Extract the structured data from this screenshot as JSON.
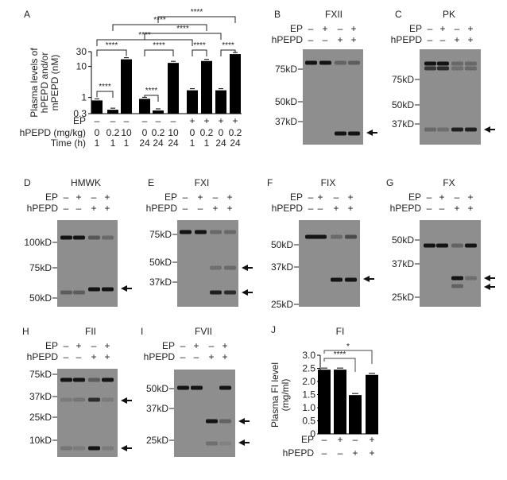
{
  "signs": {
    "minus": "–",
    "plus": "+"
  },
  "row_labels": {
    "ep": "EP",
    "hpepd": "hPEPD"
  },
  "panel_a": {
    "letter": "A",
    "row_labels": {
      "ep": "EP",
      "hpepd": "hPEPD (mg/kg)",
      "time": "Time (h)"
    },
    "rows": {
      "ep": [
        "–",
        "–",
        "–",
        "–",
        "–",
        "–",
        "+",
        "+",
        "+",
        "+"
      ],
      "hpepd": [
        "0",
        "0.2",
        "10",
        "0",
        "0.2",
        "10",
        "0",
        "0.2",
        "0",
        "0.2"
      ],
      "time": [
        "1",
        "1",
        "1",
        "24",
        "24",
        "24",
        "1",
        "1",
        "24",
        "24"
      ]
    }
  },
  "chart_data": [
    {
      "type": "bar",
      "panel": "A",
      "title": "",
      "ylabel": [
        "Plasma levels of",
        "hPEPD and/or",
        "mPEPD (nM)"
      ],
      "yscale": "log",
      "ylim": [
        0.3,
        30
      ],
      "yticks": [
        "0.3",
        "1",
        "10",
        "30"
      ],
      "ytick_values": [
        0.3,
        1,
        10,
        30
      ],
      "categories": [
        "EP- 0 1h",
        "EP- 0.2 1h",
        "EP- 10 1h",
        "EP- 0 24h",
        "EP- 0.2 24h",
        "EP- 10 24h",
        "EP+ 0 1h",
        "EP+ 0.2 1h",
        "EP+ 0 24h",
        "EP+ 0.2 24h"
      ],
      "values": [
        0.8,
        0.4,
        17,
        0.9,
        0.38,
        13,
        1.7,
        15,
        1.7,
        25
      ],
      "error_bars": true,
      "significance": [
        {
          "from": 0,
          "to": 1,
          "label": "****"
        },
        {
          "from": 3,
          "to": 4,
          "label": "****"
        },
        {
          "from": 0,
          "to": 2,
          "label": "****"
        },
        {
          "from": 3,
          "to": 5,
          "label": "****"
        },
        {
          "from": 6,
          "to": 7,
          "label": "****"
        },
        {
          "from": 8,
          "to": 9,
          "label": "****"
        },
        {
          "from": 0,
          "to": 6,
          "label": "****"
        },
        {
          "from": 3,
          "to": 8,
          "label": "****"
        },
        {
          "from": 1,
          "to": 7,
          "label": "****"
        },
        {
          "from": 4,
          "to": 9,
          "label": "****"
        }
      ]
    },
    {
      "type": "bar",
      "panel": "J",
      "letter": "J",
      "title": "FI",
      "ylabel": [
        "Plasma FI level",
        "(mg/ml)"
      ],
      "ylim": [
        0,
        3.0
      ],
      "yticks": [
        "0",
        "0.5",
        "1.0",
        "1.5",
        "2.0",
        "2.5",
        "3.0"
      ],
      "ytick_values": [
        0,
        0.5,
        1,
        1.5,
        2,
        2.5,
        3
      ],
      "rows": {
        "ep": [
          "–",
          "+",
          "–",
          "+"
        ],
        "hpepd": [
          "–",
          "–",
          "+",
          "+"
        ]
      },
      "values": [
        2.45,
        2.45,
        1.48,
        2.25
      ],
      "error_bars": true,
      "significance": [
        {
          "from": 0,
          "to": 2,
          "label": "****"
        },
        {
          "from": 0,
          "to": 3,
          "label": "*"
        }
      ]
    }
  ],
  "blots": [
    {
      "letter": "B",
      "title": "FXII",
      "ep": [
        "–",
        "+",
        "–",
        "+"
      ],
      "hpepd": [
        "–",
        "–",
        "+",
        "+"
      ],
      "markers": [
        "75kD",
        "50kD",
        "37kD"
      ]
    },
    {
      "letter": "C",
      "title": "PK",
      "ep": [
        "–",
        "+",
        "–",
        "+"
      ],
      "hpepd": [
        "–",
        "–",
        "+",
        "+"
      ],
      "markers": [
        "75kD",
        "50kD",
        "37kD"
      ]
    },
    {
      "letter": "D",
      "title": "HMWK",
      "ep": [
        "–",
        "+",
        "–",
        "+"
      ],
      "hpepd": [
        "–",
        "–",
        "+",
        "+"
      ],
      "markers": [
        "100kD",
        "75kD",
        "50kD"
      ]
    },
    {
      "letter": "E",
      "title": "FXI",
      "ep": [
        "–",
        "+",
        "–",
        "+"
      ],
      "hpepd": [
        "–",
        "–",
        "+",
        "+"
      ],
      "markers": [
        "75kD",
        "50kD",
        "37kD"
      ]
    },
    {
      "letter": "F",
      "title": "FIX",
      "ep": [
        "–",
        "+",
        "–",
        "+"
      ],
      "hpepd": [
        "–",
        "–",
        "+",
        "+"
      ],
      "markers": [
        "50kD",
        "37kD",
        "25kD"
      ]
    },
    {
      "letter": "G",
      "title": "FX",
      "ep": [
        "–",
        "+",
        "–",
        "+"
      ],
      "hpepd": [
        "–",
        "–",
        "+",
        "+"
      ],
      "markers": [
        "50kD",
        "37kD",
        "25kD"
      ]
    },
    {
      "letter": "H",
      "title": "FII",
      "ep": [
        "–",
        "+",
        "–",
        "+"
      ],
      "hpepd": [
        "–",
        "–",
        "+",
        "+"
      ],
      "markers": [
        "75kD",
        "37kD",
        "25kD",
        "10kD"
      ]
    },
    {
      "letter": "I",
      "title": "FVII",
      "ep": [
        "–",
        "+",
        "–",
        "+"
      ],
      "hpepd": [
        "–",
        "–",
        "+",
        "+"
      ],
      "markers": [
        "50kD",
        "37kD",
        "25kD"
      ]
    }
  ],
  "colors": {
    "bar": "#000000",
    "blot_bg": "#8e8e8e",
    "band": "#141414",
    "text": "#222222"
  }
}
